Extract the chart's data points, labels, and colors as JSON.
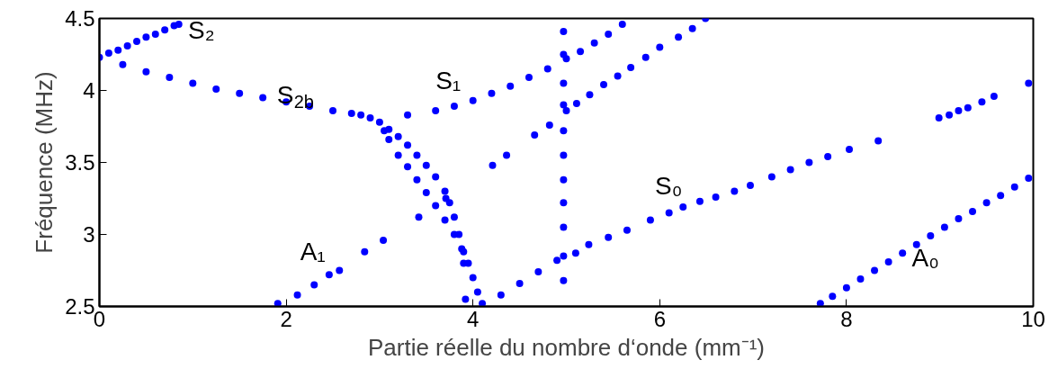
{
  "chart_data": {
    "type": "scatter",
    "xlabel": "Partie réelle du nombre d‘onde (mm⁻¹)",
    "ylabel": "Fréquence (MHz)",
    "xlim": [
      0,
      10
    ],
    "ylim": [
      2.5,
      4.5
    ],
    "xticks": [
      0,
      2,
      4,
      6,
      8,
      10
    ],
    "yticks": [
      2.5,
      3,
      3.5,
      4,
      4.5
    ],
    "marker": "circle",
    "series": [
      {
        "color": "#0000ff",
        "x": [
          0,
          0.1,
          0.2,
          0.3,
          0.4,
          0.5,
          0.6,
          0.7,
          0.8,
          0.85,
          0.25,
          0.5,
          0.75,
          1.0,
          1.25,
          1.5,
          1.75,
          2.0,
          2.25,
          2.5,
          2.7,
          2.8,
          2.9,
          3.0,
          3.1,
          3.2,
          3.3,
          3.4,
          3.5,
          3.6,
          3.7,
          3.75,
          3.8,
          3.85,
          3.88,
          3.9,
          3.92,
          3.05,
          3.1,
          3.2,
          3.3,
          3.4,
          3.5,
          3.6,
          3.7,
          3.8,
          3.9,
          3.95,
          4.0,
          4.05,
          4.1,
          3.3,
          3.6,
          3.8,
          4.0,
          4.2,
          4.4,
          4.6,
          4.8,
          5.0,
          5.15,
          5.3,
          5.45,
          5.6,
          4.21,
          4.36,
          4.66,
          4.82,
          5.0,
          5.11,
          5.25,
          5.4,
          5.55,
          5.69,
          5.85,
          6.0,
          6.2,
          6.35,
          6.49,
          4.97,
          4.97,
          4.97,
          4.97,
          4.97,
          4.97,
          4.97,
          4.97,
          4.97,
          4.97,
          4.97,
          4.3,
          4.5,
          4.7,
          4.9,
          5.1,
          5.24,
          5.45,
          5.65,
          5.9,
          6.1,
          6.25,
          6.43,
          6.6,
          6.8,
          6.97,
          7.2,
          7.4,
          7.6,
          7.8,
          8.03,
          8.34,
          8.99,
          9.1,
          9.2,
          9.3,
          9.45,
          9.58,
          9.95,
          7.72,
          7.85,
          8.0,
          8.15,
          8.3,
          8.45,
          8.6,
          8.75,
          8.9,
          9.05,
          9.2,
          9.35,
          9.5,
          9.65,
          9.8,
          9.95,
          1.91,
          2.12,
          2.3,
          2.46,
          2.57,
          2.84,
          3.04,
          3.42,
          3.71
        ],
        "values": [
          4.23,
          4.26,
          4.28,
          4.31,
          4.34,
          4.37,
          4.39,
          4.42,
          4.45,
          4.46,
          4.18,
          4.13,
          4.09,
          4.05,
          4.01,
          3.98,
          3.95,
          3.92,
          3.89,
          3.86,
          3.84,
          3.83,
          3.81,
          3.78,
          3.73,
          3.68,
          3.62,
          3.55,
          3.48,
          3.4,
          3.3,
          3.22,
          3.12,
          3.0,
          2.9,
          2.8,
          2.55,
          3.72,
          3.66,
          3.55,
          3.47,
          3.38,
          3.29,
          3.2,
          3.1,
          3.0,
          2.88,
          2.8,
          2.7,
          2.6,
          2.52,
          3.83,
          3.86,
          3.89,
          3.93,
          3.98,
          4.03,
          4.09,
          4.15,
          4.22,
          4.27,
          4.33,
          4.39,
          4.46,
          3.48,
          3.55,
          3.69,
          3.76,
          3.86,
          3.91,
          3.97,
          4.04,
          4.1,
          4.16,
          4.23,
          4.3,
          4.37,
          4.43,
          4.5,
          2.68,
          2.85,
          3.05,
          3.22,
          3.38,
          3.55,
          3.72,
          3.9,
          4.05,
          4.25,
          4.41,
          2.58,
          2.66,
          2.74,
          2.82,
          2.87,
          2.93,
          2.98,
          3.03,
          3.1,
          3.15,
          3.19,
          3.23,
          3.26,
          3.3,
          3.34,
          3.4,
          3.45,
          3.5,
          3.54,
          3.59,
          3.65,
          3.81,
          3.83,
          3.86,
          3.88,
          3.92,
          3.96,
          4.05,
          2.52,
          2.57,
          2.63,
          2.69,
          2.75,
          2.81,
          2.87,
          2.93,
          2.99,
          3.05,
          3.11,
          3.16,
          3.22,
          3.27,
          3.33,
          3.39,
          2.52,
          2.58,
          2.65,
          2.72,
          2.75,
          2.88,
          2.96,
          3.12,
          3.25
        ]
      }
    ],
    "annotations": [
      "S₂",
      "S$_{2b}$",
      "S₁",
      "S₀",
      "A₁",
      "A₀"
    ]
  }
}
